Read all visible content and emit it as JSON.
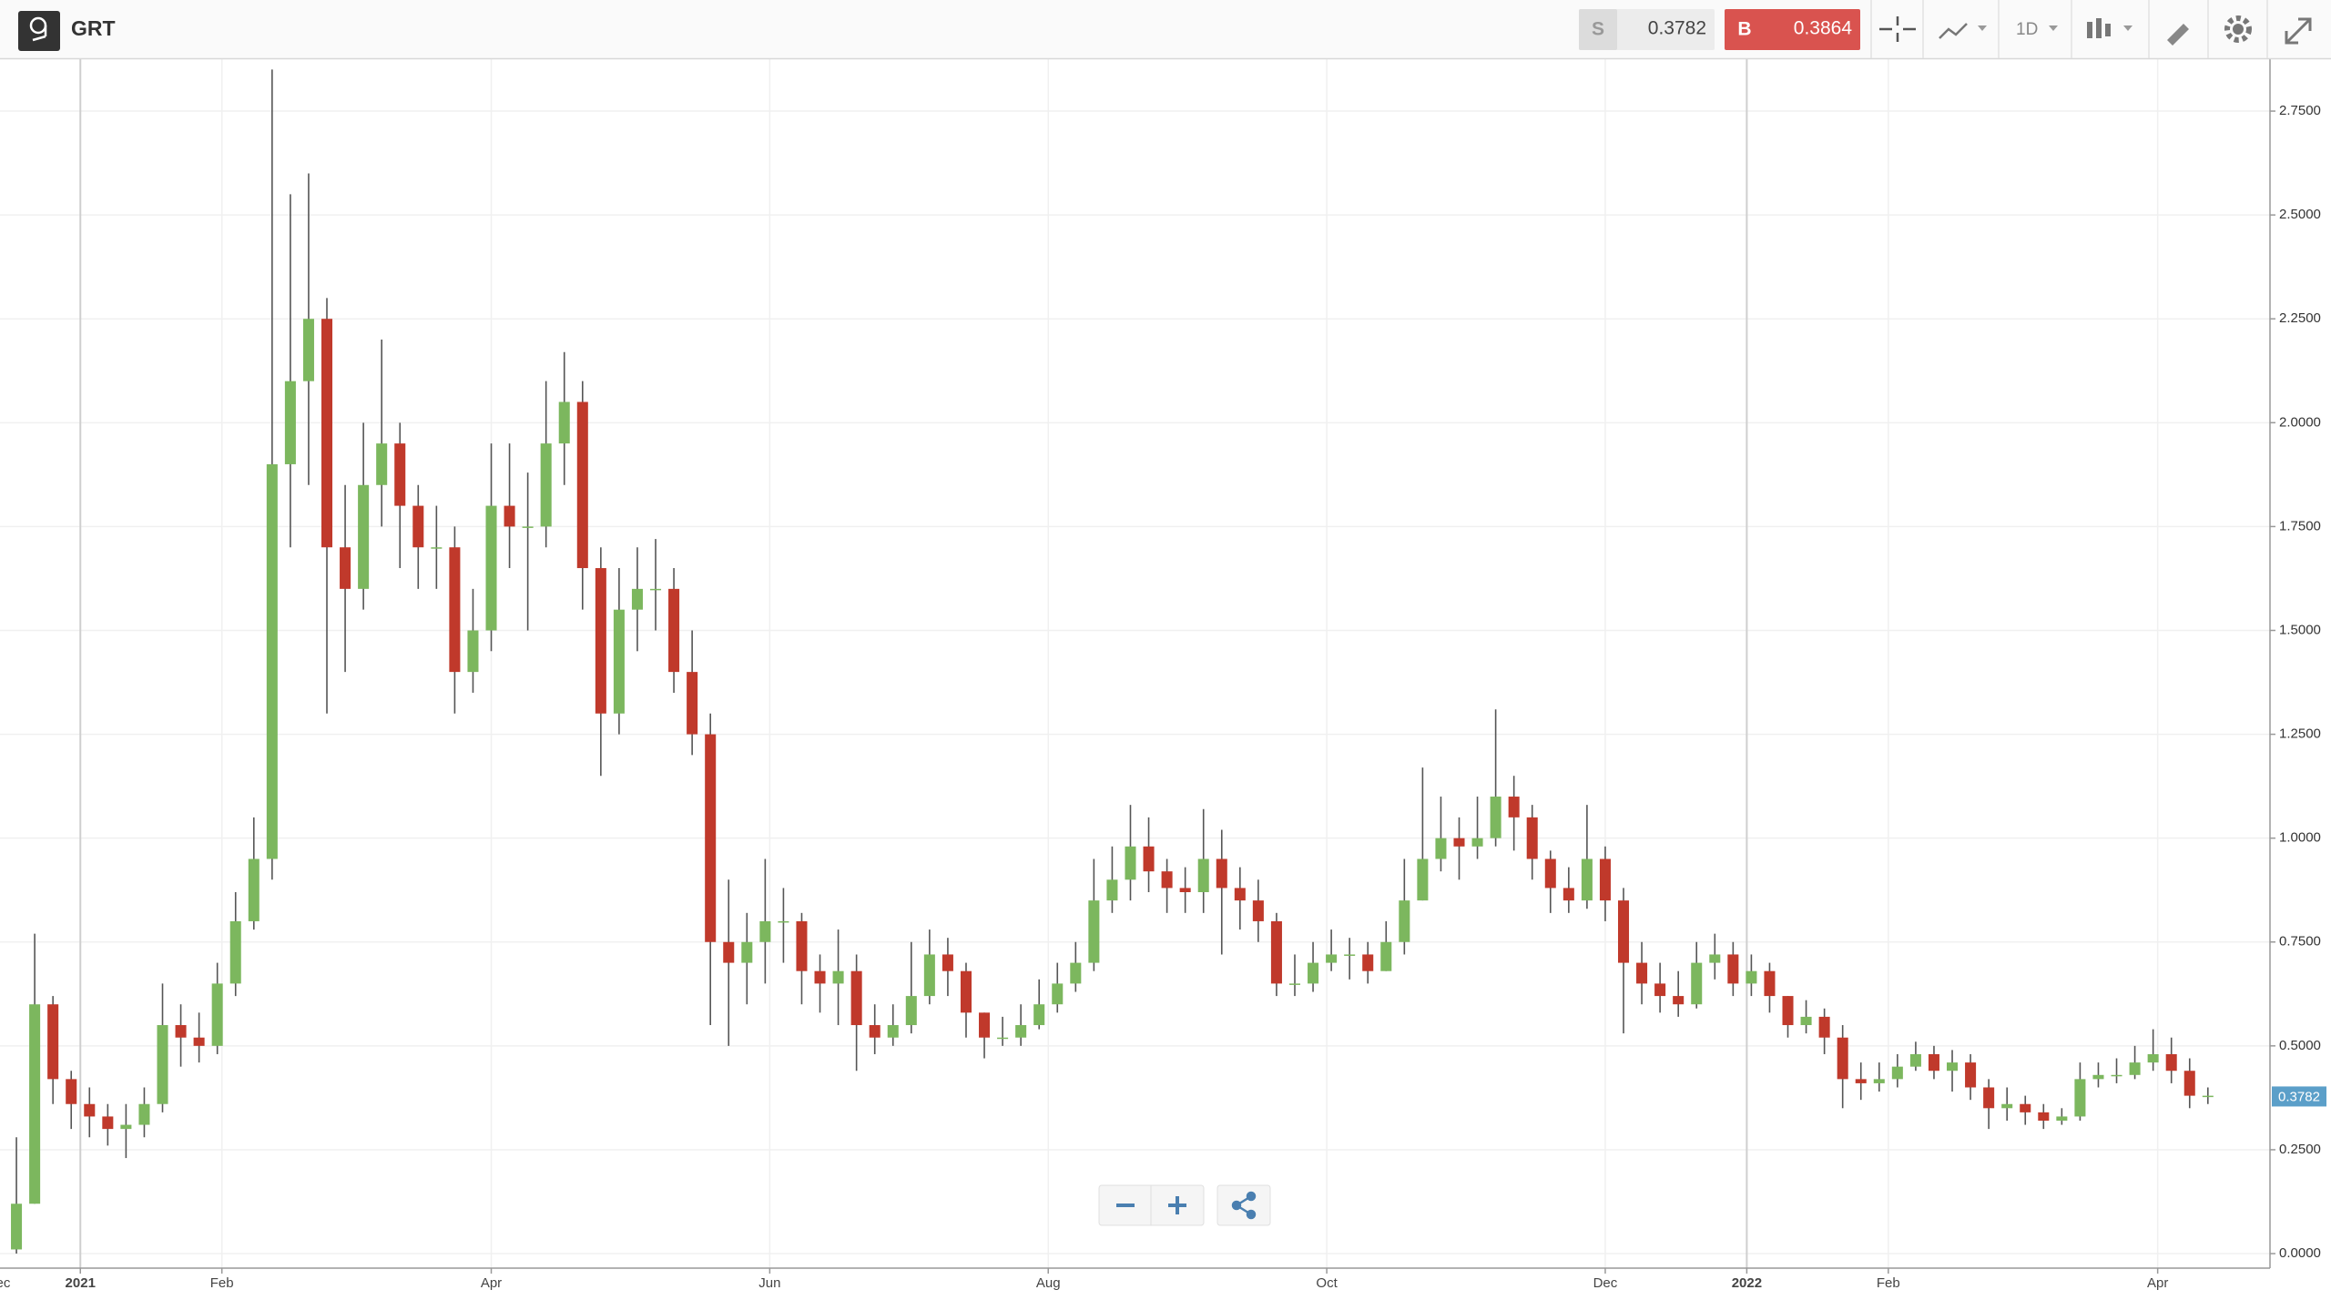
{
  "toolbar": {
    "symbol": "GRT",
    "sell_label": "S",
    "sell_price": "0.3782",
    "buy_label": "B",
    "buy_price": "0.3864",
    "interval": "1D"
  },
  "chart_data": {
    "type": "candlestick",
    "up_color": "#7cb75e",
    "down_color": "#c0392b",
    "grid": true,
    "xlim": [
      -0.9,
      123.4
    ],
    "ylim": [
      -0.035,
      2.875
    ],
    "xticks": [
      {
        "value": -1,
        "label": "Dec"
      },
      {
        "value": 3.5,
        "label": "2021",
        "bold": true
      },
      {
        "value": 11.25,
        "label": "Feb"
      },
      {
        "value": 26,
        "label": "Apr"
      },
      {
        "value": 41.25,
        "label": "Jun"
      },
      {
        "value": 56.5,
        "label": "Aug"
      },
      {
        "value": 71.75,
        "label": "Oct"
      },
      {
        "value": 87,
        "label": "Dec"
      },
      {
        "value": 94.75,
        "label": "2022",
        "bold": true
      },
      {
        "value": 102.5,
        "label": "Feb"
      },
      {
        "value": 117.25,
        "label": "Apr"
      }
    ],
    "yticks": [
      {
        "value": 0,
        "label": "0.0000"
      },
      {
        "value": 0.25,
        "label": "0.2500"
      },
      {
        "value": 0.5,
        "label": "0.5000"
      },
      {
        "value": 0.75,
        "label": "0.7500"
      },
      {
        "value": 1,
        "label": "1.0000"
      },
      {
        "value": 1.25,
        "label": "1.2500"
      },
      {
        "value": 1.5,
        "label": "1.5000"
      },
      {
        "value": 1.75,
        "label": "1.7500"
      },
      {
        "value": 2,
        "label": "2.0000"
      },
      {
        "value": 2.25,
        "label": "2.2500"
      },
      {
        "value": 2.5,
        "label": "2.5000"
      },
      {
        "value": 2.75,
        "label": "2.7500"
      }
    ],
    "last_price": {
      "value": 0.3782,
      "label": "0.3782",
      "color": "#5b9fc9"
    },
    "series": [
      {
        "open": [
          0.01,
          0.12,
          0.6,
          0.42,
          0.36,
          0.33,
          0.3,
          0.31,
          0.36,
          0.55,
          0.52,
          0.5,
          0.65,
          0.8,
          0.95,
          1.9,
          2.1,
          2.25,
          1.7,
          1.6,
          1.85,
          1.95,
          1.8,
          1.7,
          1.7,
          1.4,
          1.5,
          1.8,
          1.75,
          1.75,
          1.95,
          2.05,
          1.65,
          1.3,
          1.55,
          1.6,
          1.6,
          1.4,
          1.25,
          0.75,
          0.7,
          0.75,
          0.8,
          0.8,
          0.68,
          0.65,
          0.68,
          0.55,
          0.52,
          0.55,
          0.62,
          0.72,
          0.68,
          0.58,
          0.52,
          0.52,
          0.55,
          0.6,
          0.65,
          0.7,
          0.85,
          0.9,
          0.98,
          0.92,
          0.88,
          0.87,
          0.95,
          0.88,
          0.85,
          0.8,
          0.65,
          0.65,
          0.7,
          0.72,
          0.72,
          0.68,
          0.75,
          0.85,
          0.95,
          1.0,
          0.98,
          1.0,
          1.1,
          1.05,
          0.95,
          0.88,
          0.85,
          0.95,
          0.85,
          0.7,
          0.65,
          0.62,
          0.6,
          0.7,
          0.72,
          0.65,
          0.68,
          0.62,
          0.55,
          0.57,
          0.52,
          0.42,
          0.41,
          0.42,
          0.45,
          0.48,
          0.44,
          0.46,
          0.4,
          0.35,
          0.36,
          0.34,
          0.32,
          0.33,
          0.42,
          0.43,
          0.43,
          0.46,
          0.48,
          0.44,
          0.38
        ],
        "high": [
          0.28,
          0.77,
          0.62,
          0.44,
          0.4,
          0.36,
          0.36,
          0.4,
          0.65,
          0.6,
          0.58,
          0.7,
          0.87,
          1.05,
          2.85,
          2.55,
          2.6,
          2.3,
          1.85,
          2.0,
          2.2,
          2.0,
          1.85,
          1.8,
          1.75,
          1.6,
          1.95,
          1.95,
          1.88,
          2.1,
          2.17,
          2.1,
          1.7,
          1.65,
          1.7,
          1.72,
          1.65,
          1.5,
          1.3,
          0.9,
          0.82,
          0.95,
          0.88,
          0.82,
          0.72,
          0.78,
          0.72,
          0.6,
          0.6,
          0.75,
          0.78,
          0.76,
          0.7,
          0.58,
          0.57,
          0.6,
          0.66,
          0.7,
          0.75,
          0.95,
          0.98,
          1.08,
          1.05,
          0.95,
          0.93,
          1.07,
          1.02,
          0.93,
          0.9,
          0.82,
          0.72,
          0.75,
          0.78,
          0.76,
          0.75,
          0.8,
          0.95,
          1.17,
          1.1,
          1.05,
          1.1,
          1.31,
          1.15,
          1.08,
          0.97,
          0.93,
          1.08,
          0.98,
          0.88,
          0.75,
          0.7,
          0.68,
          0.75,
          0.77,
          0.75,
          0.72,
          0.7,
          0.62,
          0.61,
          0.59,
          0.55,
          0.46,
          0.46,
          0.48,
          0.51,
          0.5,
          0.49,
          0.48,
          0.42,
          0.4,
          0.38,
          0.36,
          0.35,
          0.46,
          0.46,
          0.47,
          0.5,
          0.54,
          0.52,
          0.47,
          0.4
        ],
        "low": [
          0.0,
          0.12,
          0.36,
          0.3,
          0.28,
          0.26,
          0.23,
          0.28,
          0.34,
          0.45,
          0.46,
          0.48,
          0.62,
          0.78,
          0.9,
          1.7,
          1.85,
          1.3,
          1.4,
          1.55,
          1.75,
          1.65,
          1.6,
          1.6,
          1.3,
          1.35,
          1.45,
          1.65,
          1.5,
          1.7,
          1.85,
          1.55,
          1.15,
          1.25,
          1.45,
          1.5,
          1.35,
          1.2,
          0.55,
          0.5,
          0.6,
          0.65,
          0.7,
          0.6,
          0.58,
          0.55,
          0.44,
          0.48,
          0.5,
          0.53,
          0.6,
          0.62,
          0.52,
          0.47,
          0.5,
          0.5,
          0.54,
          0.58,
          0.63,
          0.68,
          0.82,
          0.85,
          0.87,
          0.82,
          0.82,
          0.82,
          0.72,
          0.78,
          0.75,
          0.62,
          0.62,
          0.63,
          0.68,
          0.66,
          0.65,
          0.68,
          0.72,
          0.85,
          0.92,
          0.9,
          0.95,
          0.98,
          0.97,
          0.9,
          0.82,
          0.82,
          0.83,
          0.8,
          0.53,
          0.6,
          0.58,
          0.57,
          0.59,
          0.66,
          0.62,
          0.62,
          0.58,
          0.52,
          0.53,
          0.48,
          0.35,
          0.37,
          0.39,
          0.4,
          0.44,
          0.42,
          0.39,
          0.37,
          0.3,
          0.32,
          0.31,
          0.3,
          0.31,
          0.32,
          0.4,
          0.41,
          0.42,
          0.44,
          0.41,
          0.35,
          0.36
        ],
        "close": [
          0.12,
          0.6,
          0.42,
          0.36,
          0.33,
          0.3,
          0.31,
          0.36,
          0.55,
          0.52,
          0.5,
          0.65,
          0.8,
          0.95,
          1.9,
          2.1,
          2.25,
          1.7,
          1.6,
          1.85,
          1.95,
          1.8,
          1.7,
          1.7,
          1.4,
          1.5,
          1.8,
          1.75,
          1.75,
          1.95,
          2.05,
          1.65,
          1.3,
          1.55,
          1.6,
          1.6,
          1.4,
          1.25,
          0.75,
          0.7,
          0.75,
          0.8,
          0.8,
          0.68,
          0.65,
          0.68,
          0.55,
          0.52,
          0.55,
          0.62,
          0.72,
          0.68,
          0.58,
          0.52,
          0.52,
          0.55,
          0.6,
          0.65,
          0.7,
          0.85,
          0.9,
          0.98,
          0.92,
          0.88,
          0.87,
          0.95,
          0.88,
          0.85,
          0.8,
          0.65,
          0.65,
          0.7,
          0.72,
          0.72,
          0.68,
          0.75,
          0.85,
          0.95,
          1.0,
          0.98,
          1.0,
          1.1,
          1.05,
          0.95,
          0.88,
          0.85,
          0.95,
          0.85,
          0.7,
          0.65,
          0.62,
          0.6,
          0.7,
          0.72,
          0.65,
          0.68,
          0.62,
          0.55,
          0.57,
          0.52,
          0.42,
          0.41,
          0.42,
          0.45,
          0.48,
          0.44,
          0.46,
          0.4,
          0.35,
          0.36,
          0.34,
          0.32,
          0.33,
          0.42,
          0.43,
          0.43,
          0.46,
          0.48,
          0.44,
          0.38,
          0.38
        ]
      }
    ]
  }
}
